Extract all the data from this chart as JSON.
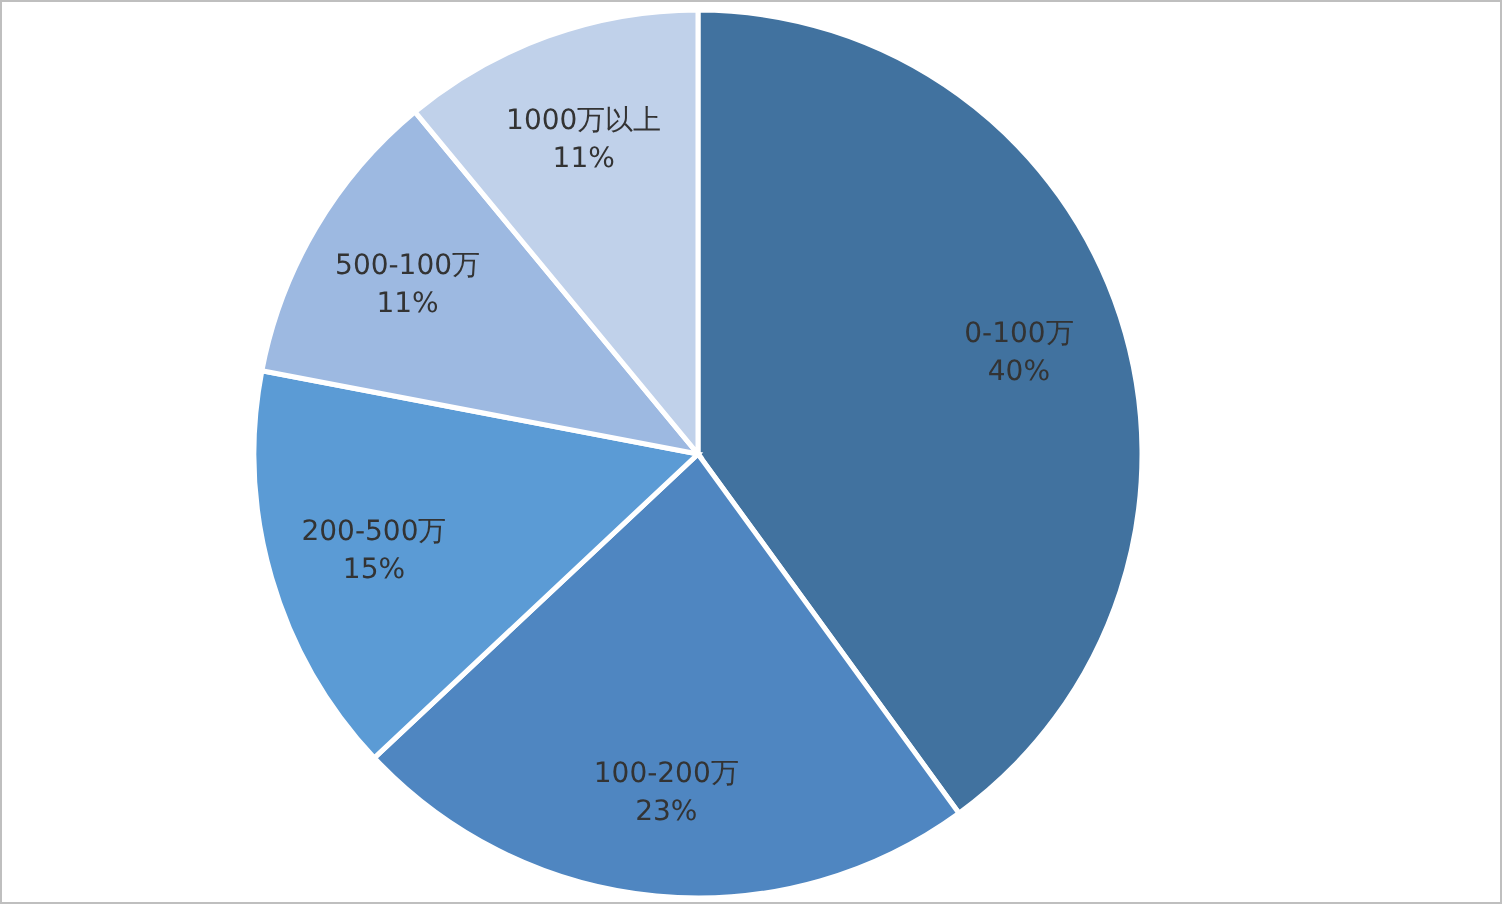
{
  "chart_data": {
    "type": "pie",
    "categories": [
      "0-100万",
      "100-200万",
      "200-500万",
      "500-100万",
      "1000万以上"
    ],
    "values": [
      40,
      23,
      15,
      11,
      11
    ],
    "colors": [
      "#41729f",
      "#4f86c1",
      "#5b9bd5",
      "#9db9e1",
      "#c0d1ea"
    ],
    "value_labels": [
      "40%",
      "23%",
      "15%",
      "11%",
      "11%"
    ]
  }
}
